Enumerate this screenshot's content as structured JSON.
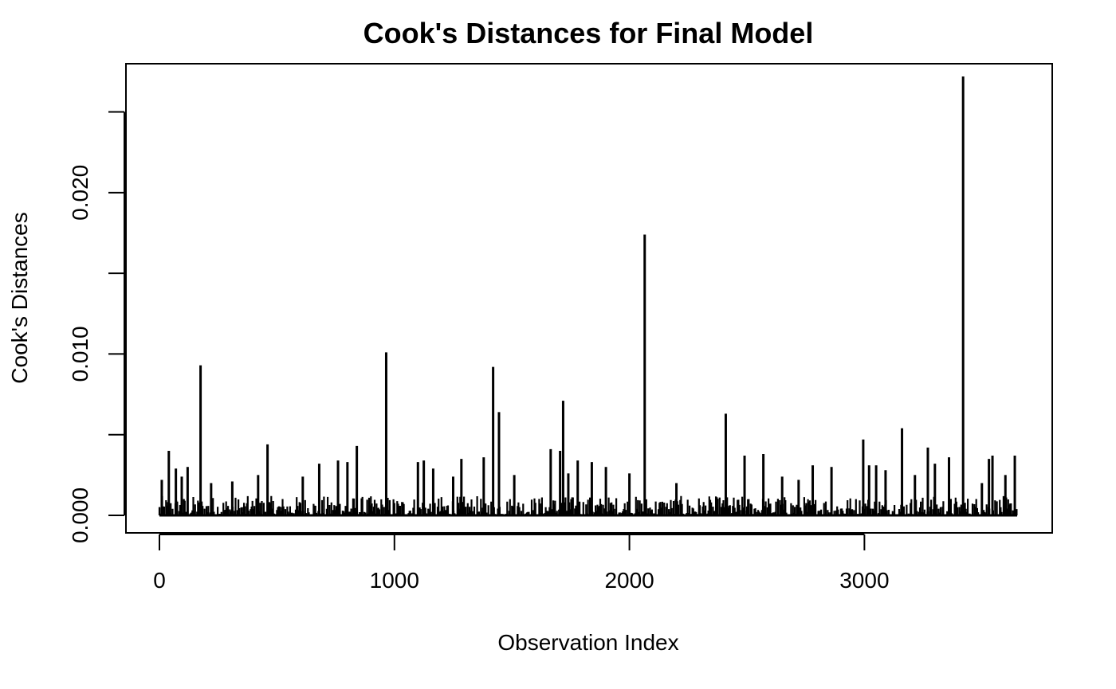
{
  "chart_data": {
    "type": "bar",
    "style": "vertical-lines",
    "title": "Cook's Distances for Final Model",
    "xlabel": "Observation Index",
    "ylabel": "Cook's Distances",
    "xlim": [
      0,
      3650
    ],
    "ylim": [
      0,
      0.027
    ],
    "x_ticks": [
      0,
      1000,
      2000,
      3000
    ],
    "x_tick_labels": [
      "0",
      "1000",
      "2000",
      "3000"
    ],
    "y_ticks": [
      0.0,
      0.005,
      0.01,
      0.015,
      0.02,
      0.025
    ],
    "y_tick_labels": [
      "0.000",
      "",
      "0.010",
      "",
      "0.020",
      ""
    ],
    "grid": false,
    "legend": "none",
    "series_color": "#000000",
    "n_observations": 3650,
    "baseline_max": 0.0012,
    "labeled_spikes": [
      {
        "x": 10,
        "y": 0.0022
      },
      {
        "x": 40,
        "y": 0.004
      },
      {
        "x": 70,
        "y": 0.0029
      },
      {
        "x": 95,
        "y": 0.0024
      },
      {
        "x": 120,
        "y": 0.003
      },
      {
        "x": 175,
        "y": 0.0093
      },
      {
        "x": 220,
        "y": 0.002
      },
      {
        "x": 310,
        "y": 0.0021
      },
      {
        "x": 420,
        "y": 0.0025
      },
      {
        "x": 460,
        "y": 0.0044
      },
      {
        "x": 610,
        "y": 0.0024
      },
      {
        "x": 680,
        "y": 0.0032
      },
      {
        "x": 760,
        "y": 0.0034
      },
      {
        "x": 800,
        "y": 0.0033
      },
      {
        "x": 840,
        "y": 0.0043
      },
      {
        "x": 965,
        "y": 0.0101
      },
      {
        "x": 1100,
        "y": 0.0033
      },
      {
        "x": 1125,
        "y": 0.0034
      },
      {
        "x": 1165,
        "y": 0.0029
      },
      {
        "x": 1250,
        "y": 0.0024
      },
      {
        "x": 1285,
        "y": 0.0035
      },
      {
        "x": 1380,
        "y": 0.0036
      },
      {
        "x": 1420,
        "y": 0.0092
      },
      {
        "x": 1445,
        "y": 0.0064
      },
      {
        "x": 1510,
        "y": 0.0025
      },
      {
        "x": 1665,
        "y": 0.0041
      },
      {
        "x": 1705,
        "y": 0.004
      },
      {
        "x": 1718,
        "y": 0.0071
      },
      {
        "x": 1740,
        "y": 0.0026
      },
      {
        "x": 1780,
        "y": 0.0034
      },
      {
        "x": 1840,
        "y": 0.0033
      },
      {
        "x": 1900,
        "y": 0.003
      },
      {
        "x": 2000,
        "y": 0.0026
      },
      {
        "x": 2065,
        "y": 0.0174
      },
      {
        "x": 2200,
        "y": 0.002
      },
      {
        "x": 2410,
        "y": 0.0063
      },
      {
        "x": 2490,
        "y": 0.0037
      },
      {
        "x": 2570,
        "y": 0.0038
      },
      {
        "x": 2650,
        "y": 0.0024
      },
      {
        "x": 2720,
        "y": 0.0022
      },
      {
        "x": 2780,
        "y": 0.0031
      },
      {
        "x": 2860,
        "y": 0.003
      },
      {
        "x": 2995,
        "y": 0.0047
      },
      {
        "x": 3020,
        "y": 0.0031
      },
      {
        "x": 3050,
        "y": 0.0031
      },
      {
        "x": 3090,
        "y": 0.0028
      },
      {
        "x": 3160,
        "y": 0.0054
      },
      {
        "x": 3215,
        "y": 0.0025
      },
      {
        "x": 3270,
        "y": 0.0042
      },
      {
        "x": 3300,
        "y": 0.0032
      },
      {
        "x": 3360,
        "y": 0.0036
      },
      {
        "x": 3420,
        "y": 0.0272
      },
      {
        "x": 3500,
        "y": 0.002
      },
      {
        "x": 3530,
        "y": 0.0035
      },
      {
        "x": 3545,
        "y": 0.0037
      },
      {
        "x": 3600,
        "y": 0.0025
      },
      {
        "x": 3640,
        "y": 0.0037
      }
    ]
  }
}
